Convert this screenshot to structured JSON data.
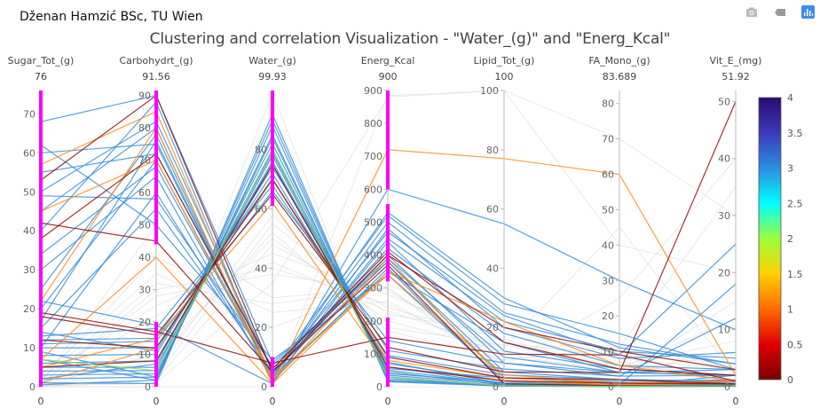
{
  "header": {
    "author": "Dženan Hamzić BSc, TU Wien",
    "title": "Clustering and correlation Visualization - \"Water_(g)\" and \"Energ_Kcal\""
  },
  "toolbar": {
    "icons": [
      "camera-icon",
      "zoom-icon",
      "plotly-logo-icon"
    ]
  },
  "chart_data": {
    "type": "parallel_coordinates",
    "title": "Clustering and correlation Visualization - \"Water_(g)\" and \"Energ_Kcal\"",
    "dimensions": [
      {
        "label": "Sugar_Tot_(g)",
        "max_label": "76",
        "min_label": "0",
        "range": [
          0,
          76
        ],
        "ticks": [
          0,
          10,
          20,
          30,
          40,
          50,
          60,
          70
        ],
        "constraint": [
          [
            0,
            76
          ]
        ]
      },
      {
        "label": "Carbohydrt_(g)",
        "max_label": "91.56",
        "min_label": "0",
        "range": [
          0,
          91.56
        ],
        "ticks": [
          0,
          10,
          20,
          30,
          40,
          50,
          60,
          70,
          80,
          90
        ],
        "constraint": [
          [
            0,
            20
          ],
          [
            44,
            91.56
          ]
        ]
      },
      {
        "label": "Water_(g)",
        "max_label": "99.93",
        "min_label": "0",
        "range": [
          0,
          99.93
        ],
        "ticks": [
          0,
          20,
          40,
          60,
          80
        ],
        "constraint": [
          [
            0,
            10
          ],
          [
            61,
            99.93
          ]
        ]
      },
      {
        "label": "Energ_Kcal",
        "max_label": "900",
        "min_label": "0",
        "range": [
          0,
          900
        ],
        "ticks": [
          0,
          100,
          200,
          300,
          400,
          500,
          600,
          700,
          800,
          900
        ],
        "constraint": [
          [
            0,
            210
          ],
          [
            320,
            555
          ],
          [
            600,
            900
          ]
        ]
      },
      {
        "label": "Lipid_Tot_(g)",
        "max_label": "100",
        "min_label": "0",
        "range": [
          0,
          100
        ],
        "ticks": [
          0,
          20,
          40,
          60,
          80,
          100
        ],
        "constraint": []
      },
      {
        "label": "FA_Mono_(g)",
        "max_label": "83.689",
        "min_label": "0",
        "range": [
          0,
          83.689
        ],
        "ticks": [
          0,
          10,
          20,
          30,
          40,
          50,
          60,
          70,
          80
        ],
        "constraint": []
      },
      {
        "label": "Vit_E_(mg)",
        "max_label": "51.92",
        "min_label": "0",
        "range": [
          0,
          51.92
        ],
        "ticks": [
          0,
          10,
          20,
          30,
          40,
          50
        ],
        "constraint": []
      }
    ],
    "color_variable": "cluster",
    "colorscale": {
      "range": [
        0,
        4
      ],
      "ticks": [
        "0",
        "0.5",
        "1",
        "1.5",
        "2",
        "2.5",
        "3",
        "3.5",
        "4"
      ],
      "stops": [
        "#7a0000",
        "#e00000",
        "#ff6a00",
        "#ffd000",
        "#9cff3a",
        "#00ffff",
        "#2a8ee0",
        "#3a3ab8",
        "#2a0a70"
      ]
    },
    "cluster_colors": {
      "0": "#8b1010",
      "1": "#ff8c1a",
      "2": "#7ed957",
      "3": "#3a8fd8",
      "filtered": "#d8d8d8"
    },
    "lines": [
      [
        5,
        6,
        78,
        45,
        0.5,
        0.2,
        0.3,
        3
      ],
      [
        8,
        10,
        75,
        60,
        1,
        0.4,
        0.5,
        3
      ],
      [
        2,
        3,
        85,
        25,
        0.3,
        0.1,
        0.2,
        3
      ],
      [
        10,
        12,
        72,
        70,
        2,
        1,
        1,
        3
      ],
      [
        3,
        4,
        80,
        40,
        1.5,
        0.6,
        0.8,
        3
      ],
      [
        12,
        15,
        70,
        75,
        1,
        0.3,
        0.4,
        3
      ],
      [
        1,
        1,
        92,
        15,
        0.2,
        0.05,
        0.1,
        3
      ],
      [
        6,
        8,
        76,
        55,
        3,
        1.5,
        1.2,
        3
      ],
      [
        4,
        5,
        82,
        35,
        0.8,
        0.3,
        2,
        3
      ],
      [
        0.5,
        2,
        88,
        20,
        0.5,
        0.1,
        0.3,
        3
      ],
      [
        13,
        18,
        68,
        95,
        4,
        2,
        1,
        3
      ],
      [
        9,
        3,
        84,
        30,
        0.3,
        0.1,
        0.1,
        3
      ],
      [
        14,
        11,
        74,
        110,
        6,
        3,
        12,
        3
      ],
      [
        2,
        7,
        79,
        50,
        1,
        0.5,
        18,
        3
      ],
      [
        11,
        14,
        66,
        140,
        8,
        4,
        3,
        3
      ],
      [
        7,
        2,
        90,
        18,
        0.2,
        0.1,
        0.1,
        3
      ],
      [
        50,
        82,
        5,
        380,
        5,
        2,
        1,
        3
      ],
      [
        60,
        75,
        3,
        350,
        15,
        4,
        2,
        3
      ],
      [
        40,
        88,
        2,
        360,
        1,
        0.5,
        0.3,
        3
      ],
      [
        20,
        70,
        4,
        420,
        18,
        6,
        3,
        3
      ],
      [
        68,
        90,
        8,
        380,
        3,
        1,
        0.5,
        3
      ],
      [
        30,
        65,
        2,
        450,
        22,
        10,
        5,
        3
      ],
      [
        55,
        72,
        6,
        400,
        8,
        3,
        2,
        3
      ],
      [
        10,
        60,
        3,
        500,
        25,
        12,
        4,
        3
      ],
      [
        45,
        80,
        1,
        480,
        20,
        8,
        6,
        3
      ],
      [
        15,
        55,
        5,
        520,
        28,
        15,
        3,
        3
      ],
      [
        25,
        78,
        2,
        440,
        12,
        5,
        2,
        3
      ],
      [
        62,
        50,
        9,
        340,
        2,
        1,
        0.5,
        3
      ],
      [
        34,
        68,
        4,
        470,
        24,
        9,
        25,
        3
      ],
      [
        49,
        58,
        7,
        390,
        10,
        4,
        2,
        3
      ],
      [
        22,
        19,
        1,
        600,
        55,
        30,
        10,
        3
      ],
      [
        17,
        76,
        3,
        530,
        30,
        11,
        4,
        3
      ],
      [
        57,
        85,
        2,
        390,
        2,
        0.5,
        0.2,
        1
      ],
      [
        22,
        80,
        1,
        720,
        77,
        60,
        2,
        1
      ],
      [
        7,
        40,
        1,
        350,
        22,
        6,
        1,
        1
      ],
      [
        45,
        70,
        3,
        340,
        4,
        1,
        1,
        1
      ],
      [
        5,
        15,
        62,
        60,
        2,
        0.5,
        1,
        1
      ],
      [
        1,
        12,
        70,
        80,
        3,
        1,
        0.5,
        1
      ],
      [
        53,
        90,
        5,
        370,
        1,
        0.3,
        0.2,
        0
      ],
      [
        38,
        72,
        6,
        410,
        15,
        5,
        2,
        0
      ],
      [
        18,
        16,
        65,
        120,
        5,
        4,
        50,
        0
      ],
      [
        12,
        12,
        70,
        90,
        3,
        2,
        0.5,
        0
      ],
      [
        42,
        45,
        5,
        400,
        20,
        10,
        3,
        0
      ],
      [
        5,
        8,
        75,
        60,
        2,
        1,
        0.5,
        0
      ],
      [
        19,
        17,
        8,
        150,
        11,
        9,
        1,
        0
      ],
      [
        7,
        5,
        80,
        30,
        0.3,
        0.1,
        0.2,
        2
      ],
      [
        0.5,
        30,
        40,
        250,
        10,
        5,
        1,
        null
      ],
      [
        1,
        50,
        30,
        300,
        5,
        2,
        0.5,
        null
      ],
      [
        0.2,
        10,
        50,
        200,
        12,
        6,
        2,
        null
      ],
      [
        2,
        25,
        45,
        280,
        15,
        8,
        3,
        null
      ],
      [
        0.1,
        3,
        55,
        220,
        18,
        7,
        1,
        null
      ],
      [
        0,
        0,
        99,
        0,
        0,
        0,
        0,
        null
      ],
      [
        3,
        35,
        20,
        310,
        20,
        9,
        4,
        null
      ],
      [
        0.3,
        1,
        35,
        880,
        100,
        70,
        30,
        null
      ],
      [
        0.4,
        5,
        58,
        180,
        14,
        6,
        8,
        null
      ],
      [
        1.5,
        40,
        25,
        260,
        8,
        3,
        15,
        null
      ],
      [
        0,
        2,
        48,
        240,
        16,
        5,
        12,
        null
      ],
      [
        0.8,
        28,
        38,
        290,
        11,
        4,
        6,
        null
      ],
      [
        0,
        0,
        0,
        884,
        100,
        40,
        20,
        null
      ],
      [
        1,
        8,
        52,
        170,
        9,
        11,
        35,
        null
      ],
      [
        0.2,
        22,
        42,
        230,
        13,
        45,
        2,
        null
      ],
      [
        2,
        32,
        28,
        300,
        7,
        25,
        40,
        null
      ]
    ]
  }
}
